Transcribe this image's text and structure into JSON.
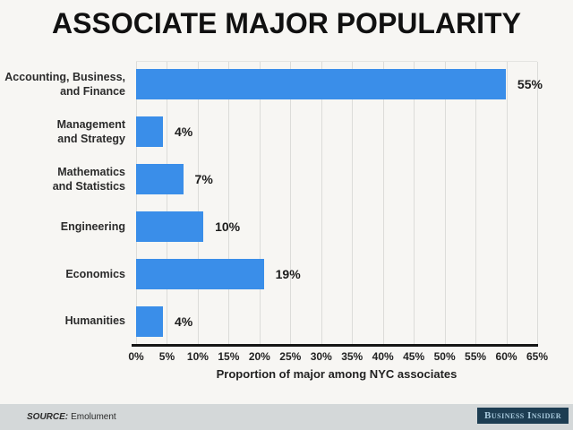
{
  "title": "ASSOCIATE MAJOR POPULARITY",
  "chart_data": {
    "type": "bar",
    "orientation": "horizontal",
    "title": "ASSOCIATE MAJOR POPULARITY",
    "categories": [
      "Accounting, Business,\nand Finance",
      "Management\nand Strategy",
      "Mathematics\nand Statistics",
      "Engineering",
      "Economics",
      "Humanities"
    ],
    "values": [
      55,
      4,
      7,
      10,
      19,
      4
    ],
    "value_labels": [
      "55%",
      "4%",
      "7%",
      "10%",
      "19%",
      "4%"
    ],
    "xlabel": "Proportion of major among NYC associates",
    "xlim": [
      0,
      65
    ],
    "xtick_step": 5,
    "xticks": [
      "0%",
      "5%",
      "10%",
      "15%",
      "20%",
      "25%",
      "30%",
      "35%",
      "40%",
      "45%",
      "50%",
      "55%",
      "60%",
      "65%"
    ],
    "grid": true,
    "legend": false,
    "bar_color": "#3a8ee9"
  },
  "colors": {
    "background": "#f7f6f3",
    "bar": "#3a8ee9",
    "gridline": "#dcdcd9",
    "axis": "#151515",
    "footer_band": "#d4d8d9",
    "badge_background": "#1d3d52",
    "badge_text": "#a9cadd"
  },
  "footer": {
    "source_label": "SOURCE:",
    "source_value": "Emolument",
    "brand": "Business Insider"
  }
}
